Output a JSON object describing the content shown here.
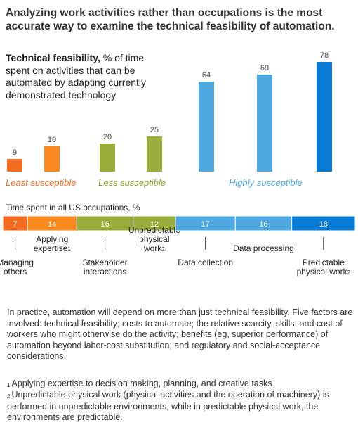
{
  "headline": "Analyzing work activities rather than occupations is the most accurate way to examine the technical feasibility of automation.",
  "chart_data": [
    {
      "type": "bar",
      "title_bold": "Technical feasibility,",
      "title_rest": " % of time spent on activities that can be automated by adapting currently demonstrated technology",
      "categories": [
        "Managing others",
        "Applying expertise",
        "Stakeholder interactions",
        "Unpredictable physical work",
        "Data collection",
        "Data processing",
        "Predictable physical work"
      ],
      "values": [
        9,
        18,
        20,
        25,
        64,
        69,
        78
      ],
      "colors": [
        "#f26b21",
        "#f7891f",
        "#9aac3c",
        "#9aac3c",
        "#4fa8e0",
        "#4fa8e0",
        "#0a7bd5"
      ],
      "groups": [
        {
          "label": "Least susceptible",
          "color": "#f26b21"
        },
        {
          "label": "Less susceptible",
          "color": "#8aa32f"
        },
        {
          "label": "Highly susceptible",
          "color": "#4fa8e0"
        }
      ],
      "ylim": [
        0,
        80
      ]
    },
    {
      "type": "bar",
      "subtype": "stacked-horizontal",
      "title": "Time spent in all US occupations, %",
      "categories": [
        "Managing others",
        "Applying expertise",
        "Stakeholder interactions",
        "Unpredictable physical work",
        "Data collection",
        "Data processing",
        "Predictable physical work"
      ],
      "values": [
        7,
        14,
        16,
        12,
        17,
        16,
        18
      ],
      "colors": [
        "#f26b21",
        "#f7891f",
        "#9aac3c",
        "#9aac3c",
        "#4fa8e0",
        "#4fa8e0",
        "#0a7bd5"
      ],
      "labels": [
        {
          "lines": [
            "Managing",
            "others"
          ],
          "sup": "",
          "pos": "below"
        },
        {
          "lines": [
            "Applying",
            "expertise"
          ],
          "sup": "1",
          "pos": "above"
        },
        {
          "lines": [
            "Stakeholder",
            "interactions"
          ],
          "sup": "",
          "pos": "below"
        },
        {
          "lines": [
            "Unpredictable",
            "physical",
            "work"
          ],
          "sup": "2",
          "pos": "above"
        },
        {
          "lines": [
            "Data collection"
          ],
          "sup": "",
          "pos": "below"
        },
        {
          "lines": [
            "Data processing"
          ],
          "sup": "",
          "pos": "above"
        },
        {
          "lines": [
            "Predictable",
            "physical work"
          ],
          "sup": "2",
          "pos": "below"
        }
      ]
    }
  ],
  "note": "In practice, automation will depend on more than just technical feasibility. Five factors are involved: technical feasibility; costs to automate; the relative scarcity, skills, and cost of workers who might otherwise do the activity; benefits (eg, superior performance) of automation beyond labor-cost substitution; and regulatory and social-acceptance considerations.",
  "footnotes": [
    {
      "mark": "1",
      "text": "Applying expertise to decision making, planning, and creative tasks."
    },
    {
      "mark": "2",
      "text": "Unpredictable physical work (physical activities and the operation of machinery) is performed in unpredictable environments, while in predictable physical work, the environments are predictable."
    }
  ]
}
